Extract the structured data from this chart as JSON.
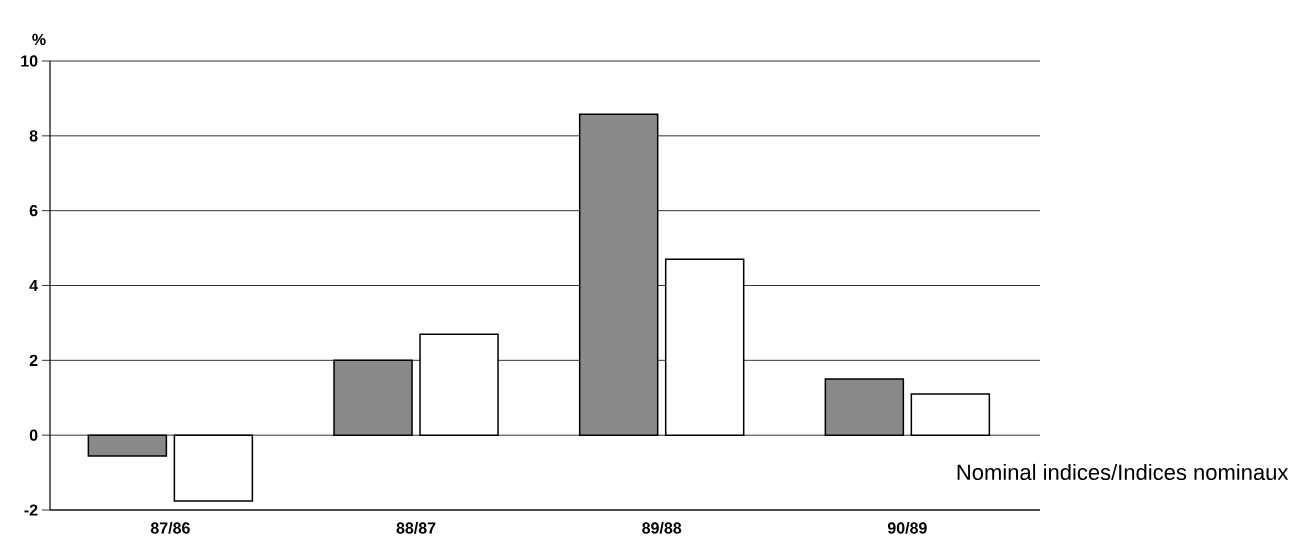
{
  "chart_data": {
    "type": "bar",
    "ylabel": "%",
    "categories": [
      "87/86",
      "88/87",
      "89/88",
      "90/89"
    ],
    "series": [
      {
        "color": "#8a8a8a",
        "values": [
          -0.56,
          2.0,
          8.58,
          1.5
        ]
      },
      {
        "color": "#ffffff",
        "values": [
          -1.76,
          2.7,
          4.7,
          1.1
        ]
      }
    ],
    "ylim": [
      -2,
      10
    ],
    "yticks": [
      -2,
      0,
      2,
      4,
      6,
      8,
      10
    ],
    "grid": "y",
    "annotations": [
      "Nominal indices/Indices nominaux"
    ]
  }
}
